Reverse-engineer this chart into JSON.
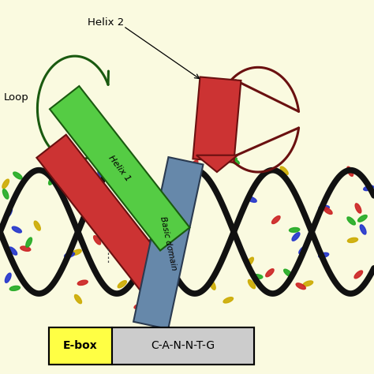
{
  "bg_color": "#FAFAE0",
  "dna_color": "#111111",
  "dna_lw": 5.5,
  "helix1_color": "#55CC44",
  "helix1_edge": "#1A5A10",
  "helix2_color": "#CC3333",
  "helix2_edge": "#6A1010",
  "basic_color": "#6688AA",
  "basic_edge": "#2A3A50",
  "loop_green": "#1A5A10",
  "loop_red": "#6A1010",
  "nuc_colors": [
    "#2233CC",
    "#22AA22",
    "#CC2222",
    "#CCAA00"
  ],
  "legend_yellow": "#FFFF44",
  "legend_gray": "#CCCCCC",
  "helix1_label": "Helix 1",
  "helix2_label": "Helix 2",
  "loop_label": "Loop",
  "basic_label": "Basic domain",
  "ebox_label": "E-box",
  "seq_label": "C-A-N-N-T-G"
}
